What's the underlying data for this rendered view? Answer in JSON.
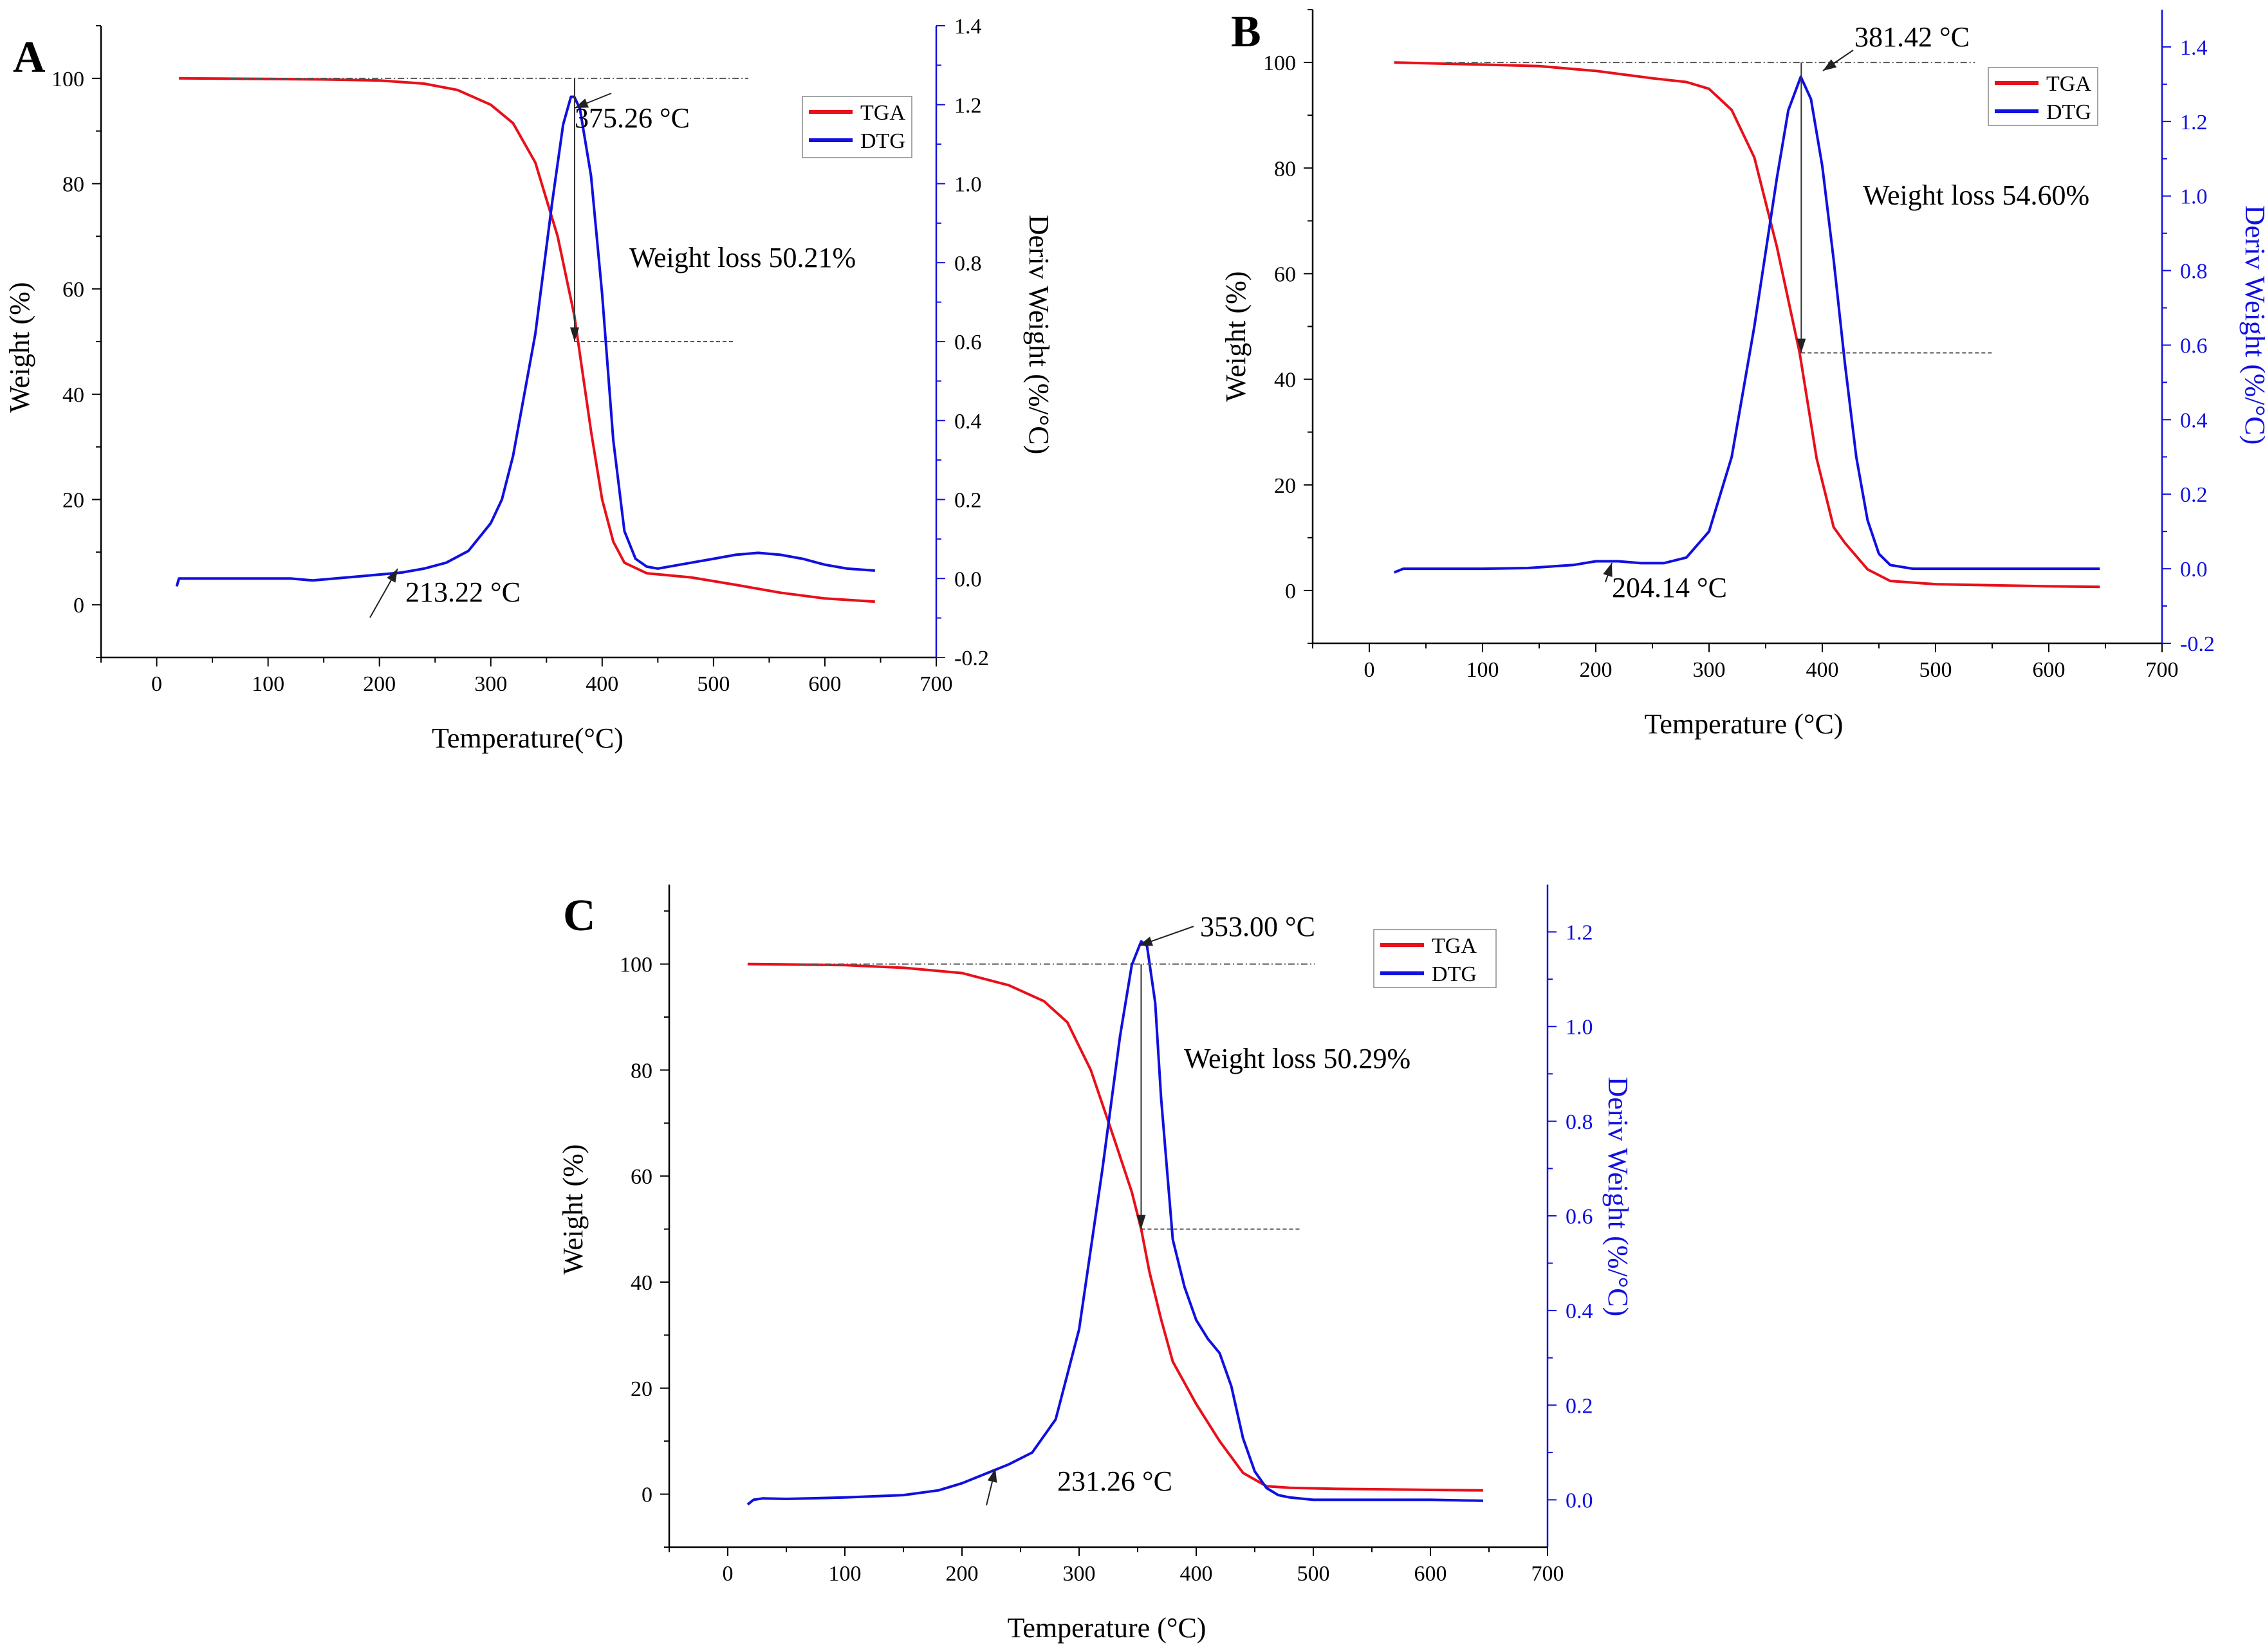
{
  "colors": {
    "tga": "#e8101a",
    "dtg": "#1010e0",
    "axis": "#000000",
    "deriv_axis": "#1010e0"
  },
  "chart_data": [
    {
      "type": "line",
      "panel": "A",
      "xlabel": "Temperature(°C)",
      "ylabel": "Weight (%)",
      "y2label": "Deriv Weight (%/°C)",
      "xlim": [
        -50,
        700
      ],
      "ylim": [
        -10,
        110
      ],
      "y2lim": [
        -0.2,
        1.4
      ],
      "xticks": [
        0,
        100,
        200,
        300,
        400,
        500,
        600,
        700
      ],
      "yticks": [
        0,
        20,
        40,
        60,
        80,
        100
      ],
      "y2ticks": [
        -0.2,
        0.0,
        0.2,
        0.4,
        0.6,
        0.8,
        1.0,
        1.2,
        1.4
      ],
      "legend": [
        "TGA",
        "DTG"
      ],
      "legend_position": "top-right",
      "series": [
        {
          "name": "TGA",
          "axis": "left",
          "x": [
            20,
            100,
            150,
            200,
            240,
            270,
            300,
            320,
            340,
            360,
            375,
            390,
            400,
            410,
            420,
            440,
            480,
            520,
            560,
            600,
            645
          ],
          "y": [
            100,
            99.9,
            99.8,
            99.6,
            99,
            97.8,
            95,
            91.5,
            84,
            70,
            55,
            33,
            20,
            12,
            8,
            6,
            5.2,
            3.8,
            2.3,
            1.2,
            0.6
          ]
        },
        {
          "name": "DTG",
          "axis": "right",
          "x": [
            18,
            20,
            22,
            40,
            80,
            120,
            140,
            160,
            180,
            200,
            220,
            240,
            260,
            280,
            300,
            310,
            320,
            340,
            355,
            365,
            372,
            375,
            380,
            390,
            400,
            410,
            420,
            430,
            440,
            450,
            460,
            480,
            500,
            520,
            540,
            560,
            580,
            600,
            620,
            645
          ],
          "y": [
            -0.02,
            0.0,
            0.0,
            0.0,
            0.0,
            0.0,
            -0.005,
            0.0,
            0.005,
            0.01,
            0.015,
            0.025,
            0.04,
            0.07,
            0.14,
            0.2,
            0.31,
            0.62,
            0.95,
            1.15,
            1.22,
            1.22,
            1.19,
            1.02,
            0.72,
            0.35,
            0.12,
            0.05,
            0.03,
            0.025,
            0.03,
            0.04,
            0.05,
            0.06,
            0.065,
            0.06,
            0.05,
            0.035,
            0.025,
            0.02
          ]
        }
      ],
      "annotations": [
        {
          "text": "375.26 °C",
          "x": 375.26
        },
        {
          "text": "213.22 °C",
          "x": 213.22
        },
        {
          "text": "Weight loss 50.21%",
          "value": 50.21
        }
      ],
      "weight_loss_start": 100,
      "weight_loss_end": 50
    },
    {
      "type": "line",
      "panel": "B",
      "xlabel": "Temperature (°C)",
      "ylabel": "Weight (%)",
      "y2label": "Deriv Weight (%/°C)",
      "xlim": [
        -50,
        700
      ],
      "ylim": [
        -10,
        110
      ],
      "y2lim": [
        -0.2,
        1.5
      ],
      "xticks": [
        0,
        100,
        200,
        300,
        400,
        500,
        600,
        700
      ],
      "yticks": [
        0,
        20,
        40,
        60,
        80,
        100
      ],
      "y2ticks": [
        -0.2,
        0.0,
        0.2,
        0.4,
        0.6,
        0.8,
        1.0,
        1.2,
        1.4
      ],
      "legend": [
        "TGA",
        "DTG"
      ],
      "legend_position": "top-right",
      "series": [
        {
          "name": "TGA",
          "axis": "left",
          "x": [
            22,
            100,
            150,
            200,
            250,
            280,
            300,
            320,
            340,
            360,
            380,
            395,
            410,
            420,
            440,
            460,
            500,
            550,
            600,
            645
          ],
          "y": [
            100,
            99.6,
            99.3,
            98.4,
            97,
            96.3,
            95,
            91,
            82,
            65,
            45,
            25,
            12,
            9,
            4,
            1.8,
            1.2,
            1.0,
            0.8,
            0.7
          ]
        },
        {
          "name": "DTG",
          "axis": "right",
          "x": [
            22,
            30,
            60,
            100,
            140,
            180,
            200,
            220,
            240,
            260,
            280,
            300,
            320,
            340,
            360,
            370,
            381,
            390,
            400,
            410,
            420,
            430,
            440,
            450,
            460,
            480,
            520,
            560,
            600,
            645
          ],
          "y": [
            -0.01,
            0.0,
            0.0,
            0.0,
            0.002,
            0.01,
            0.02,
            0.02,
            0.015,
            0.015,
            0.03,
            0.1,
            0.3,
            0.65,
            1.05,
            1.23,
            1.32,
            1.26,
            1.08,
            0.83,
            0.55,
            0.3,
            0.13,
            0.04,
            0.01,
            0.0,
            0.0,
            0.0,
            0.0,
            0.0
          ]
        }
      ],
      "annotations": [
        {
          "text": "381.42 °C",
          "x": 381.42
        },
        {
          "text": "204.14 °C",
          "x": 204.14
        },
        {
          "text": "Weight loss 54.60%",
          "value": 54.6
        }
      ],
      "weight_loss_start": 100,
      "weight_loss_end": 45
    },
    {
      "type": "line",
      "panel": "C",
      "xlabel": "Temperature (°C)",
      "ylabel": "Weight (%)",
      "y2label": "Deriv Weight (%/°C)",
      "xlim": [
        -50,
        700
      ],
      "ylim": [
        -10,
        115
      ],
      "y2lim": [
        -0.1,
        1.3
      ],
      "xticks": [
        0,
        100,
        200,
        300,
        400,
        500,
        600,
        700
      ],
      "yticks": [
        0,
        20,
        40,
        60,
        80,
        100
      ],
      "y2ticks": [
        0.0,
        0.2,
        0.4,
        0.6,
        0.8,
        1.0,
        1.2
      ],
      "legend": [
        "TGA",
        "DTG"
      ],
      "legend_position": "top-right",
      "series": [
        {
          "name": "TGA",
          "axis": "left",
          "x": [
            17,
            100,
            150,
            200,
            240,
            270,
            290,
            310,
            330,
            345,
            353,
            360,
            370,
            380,
            400,
            420,
            440,
            460,
            480,
            520,
            600,
            645
          ],
          "y": [
            100,
            99.8,
            99.3,
            98.3,
            96,
            93,
            89,
            80,
            67,
            57,
            50,
            42,
            33,
            25,
            17,
            10,
            4,
            1.5,
            1.2,
            1.0,
            0.8,
            0.7
          ]
        },
        {
          "name": "DTG",
          "axis": "right",
          "x": [
            17,
            22,
            30,
            50,
            100,
            150,
            180,
            200,
            220,
            240,
            260,
            280,
            300,
            320,
            335,
            345,
            353,
            358,
            365,
            370,
            380,
            390,
            400,
            410,
            420,
            430,
            440,
            450,
            460,
            470,
            480,
            500,
            550,
            600,
            645
          ],
          "y": [
            -0.01,
            0.0,
            0.003,
            0.002,
            0.005,
            0.01,
            0.02,
            0.035,
            0.055,
            0.075,
            0.1,
            0.17,
            0.36,
            0.7,
            0.98,
            1.13,
            1.18,
            1.17,
            1.05,
            0.85,
            0.55,
            0.45,
            0.38,
            0.34,
            0.31,
            0.24,
            0.13,
            0.06,
            0.025,
            0.01,
            0.005,
            0.0,
            0.0,
            0.0,
            -0.002
          ]
        }
      ],
      "annotations": [
        {
          "text": "353.00 °C",
          "x": 353.0
        },
        {
          "text": "231.26 °C",
          "x": 231.26
        },
        {
          "text": "Weight loss 50.29%",
          "value": 50.29
        }
      ],
      "weight_loss_start": 100,
      "weight_loss_end": 50
    }
  ]
}
